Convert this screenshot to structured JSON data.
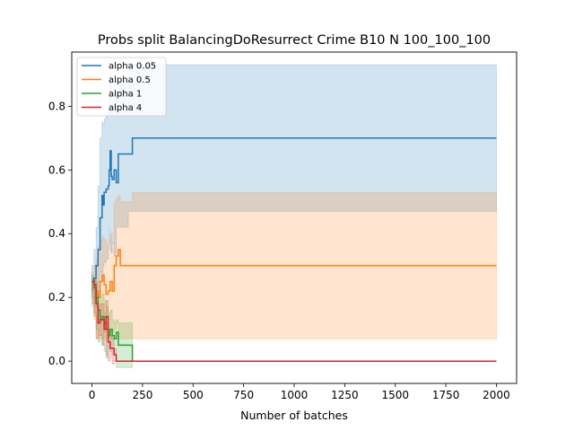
{
  "chart_data": {
    "type": "line",
    "title": "Probs split BalancingDoResurrect Crime B10 N 100_100_100",
    "xlabel": "Number of batches",
    "ylabel": "",
    "xlim": [
      -100,
      2100
    ],
    "ylim": [
      -0.07,
      0.97
    ],
    "xticks": [
      0,
      250,
      500,
      750,
      1000,
      1250,
      1500,
      1750,
      2000
    ],
    "yticks": [
      0.0,
      0.2,
      0.4,
      0.6,
      0.8
    ],
    "ytick_labels": [
      "0.0",
      "0.2",
      "0.4",
      "0.6",
      "0.8"
    ],
    "legend_position": "top-left",
    "grid": false,
    "series": [
      {
        "name": "alpha 0.05",
        "color": "#1f77b4",
        "x": [
          0,
          10,
          20,
          30,
          40,
          50,
          55,
          60,
          70,
          80,
          85,
          90,
          95,
          100,
          110,
          120,
          130,
          150,
          180,
          200,
          2000
        ],
        "y": [
          0.25,
          0.26,
          0.3,
          0.35,
          0.45,
          0.52,
          0.49,
          0.53,
          0.54,
          0.55,
          0.6,
          0.66,
          0.58,
          0.57,
          0.6,
          0.56,
          0.65,
          0.65,
          0.65,
          0.7,
          0.7
        ],
        "band_upper": [
          0.3,
          0.35,
          0.42,
          0.55,
          0.7,
          0.75,
          0.74,
          0.76,
          0.77,
          0.78,
          0.83,
          0.9,
          0.82,
          0.81,
          0.84,
          0.8,
          0.88,
          0.88,
          0.88,
          0.93,
          0.93
        ],
        "band_lower": [
          0.2,
          0.18,
          0.18,
          0.17,
          0.2,
          0.28,
          0.25,
          0.3,
          0.31,
          0.32,
          0.37,
          0.42,
          0.35,
          0.34,
          0.37,
          0.33,
          0.42,
          0.42,
          0.42,
          0.47,
          0.47
        ]
      },
      {
        "name": "alpha 0.5",
        "color": "#ff7f0e",
        "x": [
          0,
          10,
          20,
          30,
          40,
          50,
          60,
          70,
          80,
          90,
          100,
          110,
          120,
          130,
          140,
          200,
          2000
        ],
        "y": [
          0.25,
          0.24,
          0.22,
          0.2,
          0.25,
          0.27,
          0.24,
          0.21,
          0.22,
          0.25,
          0.22,
          0.3,
          0.33,
          0.35,
          0.3,
          0.3,
          0.3
        ],
        "band_upper": [
          0.28,
          0.3,
          0.32,
          0.36,
          0.38,
          0.39,
          0.38,
          0.36,
          0.37,
          0.4,
          0.37,
          0.5,
          0.51,
          0.52,
          0.5,
          0.53,
          0.53
        ],
        "band_lower": [
          0.2,
          0.17,
          0.13,
          0.07,
          0.07,
          0.08,
          0.07,
          0.07,
          0.07,
          0.08,
          0.07,
          0.09,
          0.1,
          0.12,
          0.07,
          0.07,
          0.07
        ]
      },
      {
        "name": "alpha 1",
        "color": "#2ca02c",
        "x": [
          0,
          10,
          20,
          30,
          40,
          50,
          60,
          70,
          80,
          90,
          100,
          110,
          120,
          130,
          140,
          190,
          200
        ],
        "y": [
          0.25,
          0.23,
          0.2,
          0.16,
          0.13,
          0.14,
          0.12,
          0.1,
          0.08,
          0.1,
          0.08,
          0.07,
          0.09,
          0.05,
          0.05,
          0.05,
          0.0
        ],
        "band_upper": [
          0.27,
          0.26,
          0.25,
          0.22,
          0.2,
          0.21,
          0.19,
          0.17,
          0.15,
          0.16,
          0.13,
          0.12,
          0.13,
          0.12,
          0.12,
          0.12,
          0.12
        ],
        "band_lower": [
          0.23,
          0.2,
          0.15,
          0.1,
          0.06,
          0.07,
          0.05,
          0.03,
          0.01,
          0.04,
          0.03,
          0.02,
          0.05,
          -0.02,
          -0.02,
          -0.02,
          -0.02
        ]
      },
      {
        "name": "alpha 4",
        "color": "#d62728",
        "x": [
          0,
          10,
          20,
          30,
          40,
          50,
          60,
          70,
          80,
          90,
          100,
          110,
          120,
          130,
          2000
        ],
        "y": [
          0.25,
          0.24,
          0.18,
          0.12,
          0.13,
          0.13,
          0.1,
          0.14,
          0.06,
          0.04,
          0.04,
          0.02,
          0.0,
          0.0,
          0.0
        ],
        "band_upper": [
          0.26,
          0.26,
          0.22,
          0.17,
          0.18,
          0.18,
          0.15,
          0.19,
          0.1,
          0.08,
          0.07,
          0.04,
          0.0,
          0.0,
          0.0
        ],
        "band_lower": [
          0.24,
          0.22,
          0.14,
          0.07,
          0.08,
          0.08,
          0.05,
          0.09,
          0.02,
          0.0,
          0.01,
          -0.01,
          0.0,
          0.0,
          0.0
        ]
      }
    ]
  }
}
